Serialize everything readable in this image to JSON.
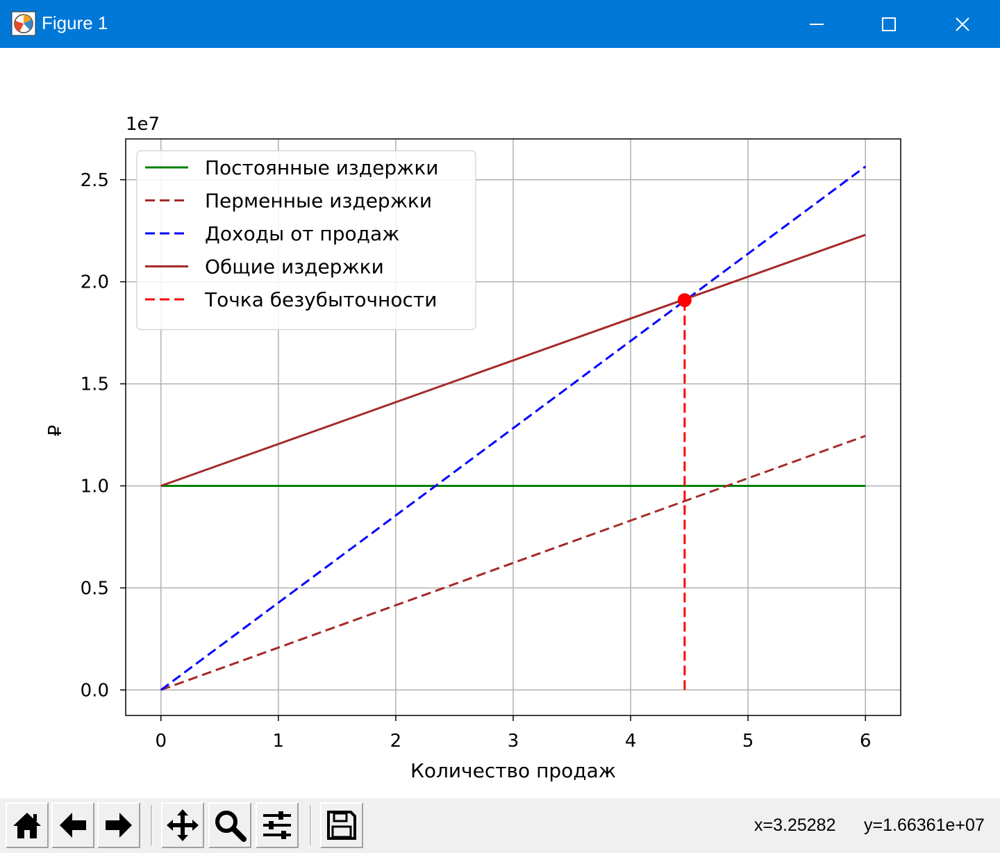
{
  "window": {
    "title": "Figure 1",
    "icons": {
      "app": "matplotlib-icon",
      "minimize": "minimize-icon",
      "maximize": "maximize-icon",
      "close": "close-icon"
    },
    "accent": "#0078d7"
  },
  "toolbar": {
    "buttons": [
      {
        "name": "home-button",
        "icon": "home-icon"
      },
      {
        "name": "back-button",
        "icon": "arrow-left-icon"
      },
      {
        "name": "forward-button",
        "icon": "arrow-right-icon"
      },
      {
        "name": "pan-button",
        "icon": "move-icon"
      },
      {
        "name": "zoom-button",
        "icon": "magnifier-icon"
      },
      {
        "name": "subplots-button",
        "icon": "sliders-icon"
      },
      {
        "name": "save-button",
        "icon": "floppy-disk-icon"
      }
    ],
    "x_readout": "x=3.25282",
    "y_readout": "y=1.66361e+07"
  },
  "chart_data": {
    "type": "line",
    "title": "",
    "xlabel": "Количество продаж",
    "ylabel": "₽",
    "offset_text": "1e7",
    "xlim": [
      -0.3,
      6.3
    ],
    "ylim": [
      -1.25,
      27.0
    ],
    "y_unit_scale": 1000000,
    "xticks": [
      0,
      1,
      2,
      3,
      4,
      5,
      6
    ],
    "xtick_labels": [
      "0",
      "1",
      "2",
      "3",
      "4",
      "5",
      "6"
    ],
    "yticks": [
      0,
      5,
      10,
      15,
      20,
      25
    ],
    "ytick_labels": [
      "0.0",
      "0.5",
      "1.0",
      "1.5",
      "2.0",
      "2.5"
    ],
    "grid": true,
    "legend_position": "upper-left",
    "series": [
      {
        "name": "Постоянные издержки",
        "color": "#008000",
        "dash": "solid",
        "x": [
          0,
          6
        ],
        "y": [
          10.0,
          10.0
        ]
      },
      {
        "name": "Перменные издержки",
        "color": "#a52a2a",
        "dash": "dashed",
        "x": [
          0,
          6
        ],
        "y": [
          0.0,
          12.45
        ]
      },
      {
        "name": "Доходы от продаж",
        "color": "#0000ff",
        "dash": "dashed",
        "x": [
          0,
          6
        ],
        "y": [
          0.0,
          25.65
        ]
      },
      {
        "name": "Общие издержки",
        "color": "#a52a2a",
        "dash": "solid",
        "x": [
          0,
          6
        ],
        "y": [
          10.0,
          22.3
        ]
      },
      {
        "name": "Точка безубыточности",
        "color": "#ff0000",
        "dash": "dashed",
        "x": [
          4.46,
          4.46
        ],
        "y": [
          0.0,
          19.1
        ]
      }
    ],
    "marker": {
      "x": 4.46,
      "y": 19.1,
      "color": "#ff0000"
    }
  }
}
